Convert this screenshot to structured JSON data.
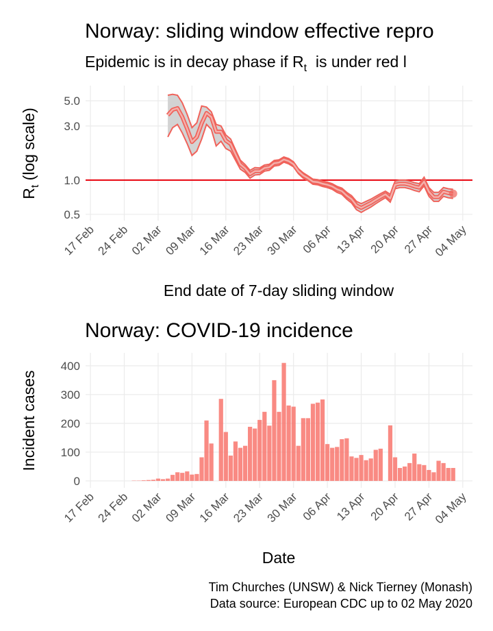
{
  "chart_data": [
    {
      "type": "line",
      "title": "Norway: sliding window effective repro",
      "subtitle": {
        "before": "Epidemic is in decay phase if R",
        "sub": "t",
        "after": "  is under red l"
      },
      "xlabel": "End date of 7-day sliding window",
      "ylabel": {
        "main": "R",
        "sub": "t",
        "rest": " (log scale)"
      },
      "log_scale": true,
      "grid": true,
      "xlim": [
        "16 Feb",
        "06 May"
      ],
      "xticks": [
        "17 Feb",
        "24 Feb",
        "02 Mar",
        "09 Mar",
        "16 Mar",
        "23 Mar",
        "30 Mar",
        "06 Apr",
        "13 Apr",
        "20 Apr",
        "27 Apr",
        "04 May"
      ],
      "ylim": [
        0.44,
        6.8
      ],
      "yticks": [
        0.5,
        {
          "value": 1,
          "label": "1.0"
        },
        {
          "value": 3,
          "label": "3.0"
        },
        {
          "value": 5,
          "label": "5.0"
        }
      ],
      "reference_line": 1,
      "reference_color": "#e8000b",
      "color": "#f0625a",
      "band_color": "#d3d3d3",
      "x": [
        "04 Mar",
        "05 Mar",
        "06 Mar",
        "07 Mar",
        "08 Mar",
        "09 Mar",
        "10 Mar",
        "11 Mar",
        "12 Mar",
        "13 Mar",
        "14 Mar",
        "15 Mar",
        "16 Mar",
        "17 Mar",
        "18 Mar",
        "19 Mar",
        "20 Mar",
        "21 Mar",
        "22 Mar",
        "23 Mar",
        "24 Mar",
        "25 Mar",
        "26 Mar",
        "27 Mar",
        "28 Mar",
        "29 Mar",
        "30 Mar",
        "31 Mar",
        "01 Apr",
        "02 Apr",
        "03 Apr",
        "04 Apr",
        "05 Apr",
        "06 Apr",
        "07 Apr",
        "08 Apr",
        "09 Apr",
        "10 Apr",
        "11 Apr",
        "12 Apr",
        "13 Apr",
        "14 Apr",
        "15 Apr",
        "16 Apr",
        "17 Apr",
        "18 Apr",
        "19 Apr",
        "20 Apr",
        "21 Apr",
        "22 Apr",
        "23 Apr",
        "24 Apr",
        "25 Apr",
        "26 Apr",
        "27 Apr",
        "28 Apr",
        "29 Apr",
        "30 Apr",
        "01 May",
        "02 May"
      ],
      "values": [
        3.74,
        4.17,
        4.3,
        3.6,
        2.83,
        2.17,
        2.4,
        3.16,
        3.9,
        3.6,
        2.67,
        2.67,
        2.23,
        2.08,
        1.69,
        1.38,
        1.27,
        1.13,
        1.2,
        1.2,
        1.28,
        1.3,
        1.41,
        1.43,
        1.52,
        1.47,
        1.38,
        1.2,
        1.1,
        1.04,
        0.97,
        0.96,
        0.93,
        0.91,
        0.88,
        0.83,
        0.8,
        0.73,
        0.68,
        0.6,
        0.57,
        0.6,
        0.63,
        0.67,
        0.71,
        0.75,
        0.69,
        0.91,
        0.93,
        0.93,
        0.91,
        0.88,
        0.86,
        0.97,
        0.79,
        0.71,
        0.71,
        0.79,
        0.77,
        0.76
      ],
      "upper": [
        5.6,
        5.7,
        5.6,
        4.8,
        3.8,
        2.9,
        3.2,
        4.5,
        4.4,
        4.0,
        3.1,
        3.0,
        2.5,
        2.3,
        1.85,
        1.5,
        1.37,
        1.22,
        1.29,
        1.28,
        1.36,
        1.38,
        1.49,
        1.51,
        1.6,
        1.55,
        1.45,
        1.26,
        1.16,
        1.09,
        1.02,
        1.01,
        0.98,
        0.96,
        0.93,
        0.88,
        0.85,
        0.78,
        0.73,
        0.65,
        0.62,
        0.65,
        0.68,
        0.72,
        0.76,
        0.8,
        0.75,
        0.98,
        1.0,
        1.0,
        0.98,
        0.95,
        0.93,
        1.06,
        0.86,
        0.78,
        0.78,
        0.86,
        0.84,
        0.83
      ],
      "lower": [
        2.4,
        2.9,
        3.1,
        2.6,
        2.1,
        1.65,
        1.8,
        2.3,
        3.1,
        2.8,
        2.0,
        2.2,
        1.9,
        1.8,
        1.5,
        1.25,
        1.17,
        1.04,
        1.11,
        1.12,
        1.2,
        1.22,
        1.33,
        1.35,
        1.44,
        1.39,
        1.31,
        1.14,
        1.04,
        0.99,
        0.92,
        0.91,
        0.88,
        0.86,
        0.83,
        0.78,
        0.75,
        0.68,
        0.63,
        0.55,
        0.52,
        0.55,
        0.58,
        0.62,
        0.66,
        0.7,
        0.64,
        0.84,
        0.86,
        0.86,
        0.84,
        0.81,
        0.79,
        0.89,
        0.72,
        0.65,
        0.65,
        0.72,
        0.7,
        0.69
      ]
    },
    {
      "type": "bar",
      "title": "Norway: COVID-19 incidence",
      "xlabel": "Date",
      "ylabel": "Incident cases",
      "grid": true,
      "xlim": [
        "16 Feb",
        "06 May"
      ],
      "xticks": [
        "17 Feb",
        "24 Feb",
        "02 Mar",
        "09 Mar",
        "16 Mar",
        "23 Mar",
        "30 Mar",
        "06 Apr",
        "13 Apr",
        "20 Apr",
        "27 Apr",
        "04 May"
      ],
      "ylim": [
        -24,
        445
      ],
      "yticks": [
        0,
        100,
        200,
        300,
        400
      ],
      "color": "#f8766d",
      "x": [
        "26 Feb",
        "27 Feb",
        "28 Feb",
        "29 Feb",
        "01 Mar",
        "02 Mar",
        "03 Mar",
        "04 Mar",
        "05 Mar",
        "06 Mar",
        "07 Mar",
        "08 Mar",
        "09 Mar",
        "10 Mar",
        "11 Mar",
        "12 Mar",
        "13 Mar",
        "14 Mar",
        "15 Mar",
        "16 Mar",
        "17 Mar",
        "18 Mar",
        "19 Mar",
        "20 Mar",
        "21 Mar",
        "22 Mar",
        "23 Mar",
        "24 Mar",
        "25 Mar",
        "26 Mar",
        "27 Mar",
        "28 Mar",
        "29 Mar",
        "30 Mar",
        "31 Mar",
        "01 Apr",
        "02 Apr",
        "03 Apr",
        "04 Apr",
        "05 Apr",
        "06 Apr",
        "07 Apr",
        "08 Apr",
        "09 Apr",
        "10 Apr",
        "11 Apr",
        "12 Apr",
        "13 Apr",
        "14 Apr",
        "15 Apr",
        "16 Apr",
        "17 Apr",
        "18 Apr",
        "19 Apr",
        "20 Apr",
        "21 Apr",
        "22 Apr",
        "23 Apr",
        "24 Apr",
        "25 Apr",
        "26 Apr",
        "27 Apr",
        "28 Apr",
        "29 Apr",
        "30 Apr",
        "01 May",
        "02 May"
      ],
      "values": [
        1,
        1,
        2,
        3,
        4,
        8,
        6,
        8,
        21,
        30,
        28,
        33,
        22,
        24,
        82,
        210,
        130,
        0,
        285,
        170,
        88,
        137,
        115,
        122,
        188,
        182,
        212,
        240,
        192,
        350,
        240,
        410,
        262,
        258,
        122,
        218,
        218,
        268,
        272,
        283,
        128,
        115,
        118,
        145,
        148,
        85,
        80,
        90,
        72,
        78,
        108,
        112,
        0,
        193,
        82,
        45,
        50,
        62,
        95,
        58,
        55,
        38,
        30,
        70,
        62,
        45,
        45
      ]
    }
  ],
  "caption": [
    "Tim Churches (UNSW) & Nick Tierney (Monash)",
    "Data source: European CDC up to 02 May 2020"
  ]
}
